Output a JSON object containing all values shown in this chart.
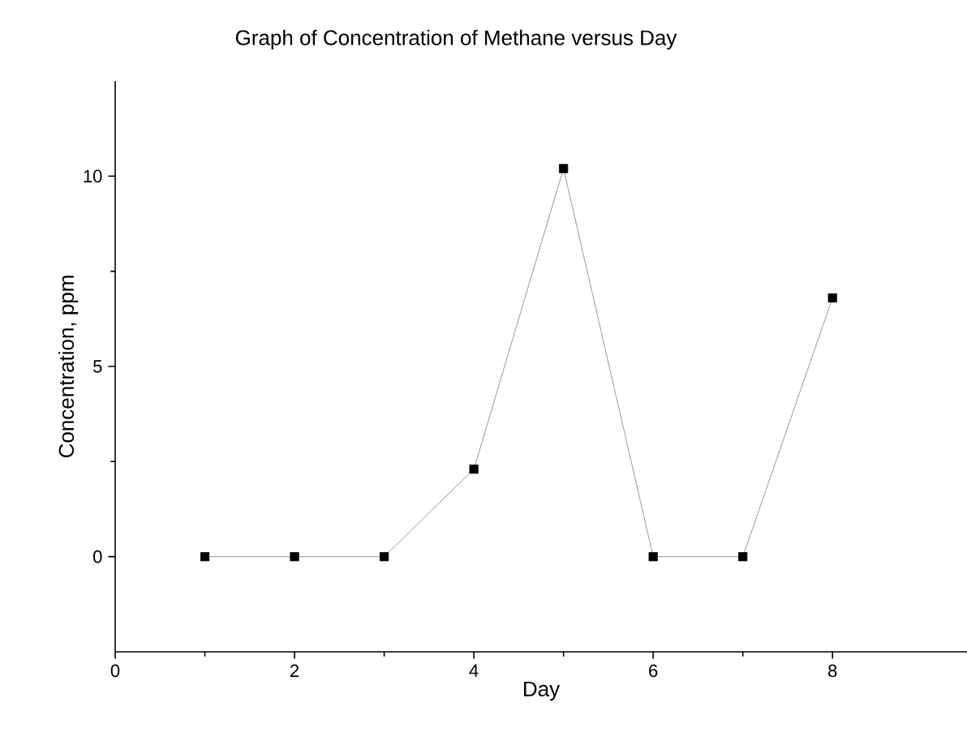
{
  "chart_data": {
    "type": "line",
    "title": "Graph of Concentration of Methane versus Day",
    "xlabel": "Day",
    "ylabel": "Concentration, ppm",
    "x": [
      1,
      2,
      3,
      4,
      5,
      6,
      7,
      8
    ],
    "series": [
      {
        "color": "#7f7f7f",
        "values": [
          0,
          0,
          0,
          2.3,
          10.2,
          0,
          0,
          6.8
        ]
      }
    ],
    "xlim": [
      0,
      9.5
    ],
    "ylim": [
      -2.5,
      12.5
    ],
    "xticks": [
      0,
      2,
      4,
      6,
      8
    ],
    "yticks": [
      0,
      5,
      10
    ],
    "marker": "square",
    "line_style": "solid"
  }
}
